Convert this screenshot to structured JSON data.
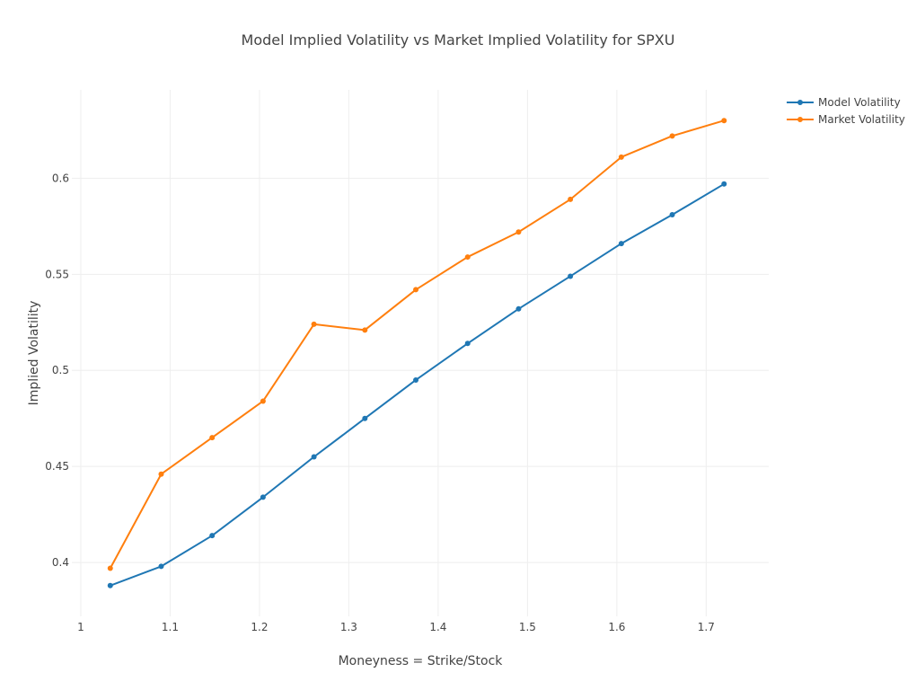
{
  "chart_data": {
    "type": "line",
    "title": "Model Implied Volatility vs Market Implied Volatility for SPXU",
    "xlabel": "Moneyness = Strike/Stock",
    "ylabel": "Implied Volatility",
    "xlim": [
      0.99,
      1.77
    ],
    "ylim": [
      0.372,
      0.646
    ],
    "xticks": [
      1,
      1.1,
      1.2,
      1.3,
      1.4,
      1.5,
      1.6,
      1.7
    ],
    "xtick_labels": [
      "1",
      "1.1",
      "1.2",
      "1.3",
      "1.4",
      "1.5",
      "1.6",
      "1.7"
    ],
    "yticks": [
      0.4,
      0.45,
      0.5,
      0.55,
      0.6
    ],
    "ytick_labels": [
      "0.4",
      "0.45",
      "0.5",
      "0.55",
      "0.6"
    ],
    "grid": true,
    "legend_position": "top-right",
    "x": [
      1.033,
      1.09,
      1.147,
      1.204,
      1.261,
      1.318,
      1.375,
      1.433,
      1.49,
      1.548,
      1.605,
      1.662,
      1.72
    ],
    "series": [
      {
        "name": "Model Volatility",
        "color": "#1f77b4",
        "values": [
          0.388,
          0.398,
          0.414,
          0.434,
          0.455,
          0.475,
          0.495,
          0.514,
          0.532,
          0.549,
          0.566,
          0.581,
          0.597
        ]
      },
      {
        "name": "Market Volatility",
        "color": "#ff7f0e",
        "values": [
          0.397,
          0.446,
          0.465,
          0.484,
          0.524,
          0.521,
          0.542,
          0.559,
          0.572,
          0.589,
          0.611,
          0.622,
          0.63
        ]
      }
    ]
  }
}
